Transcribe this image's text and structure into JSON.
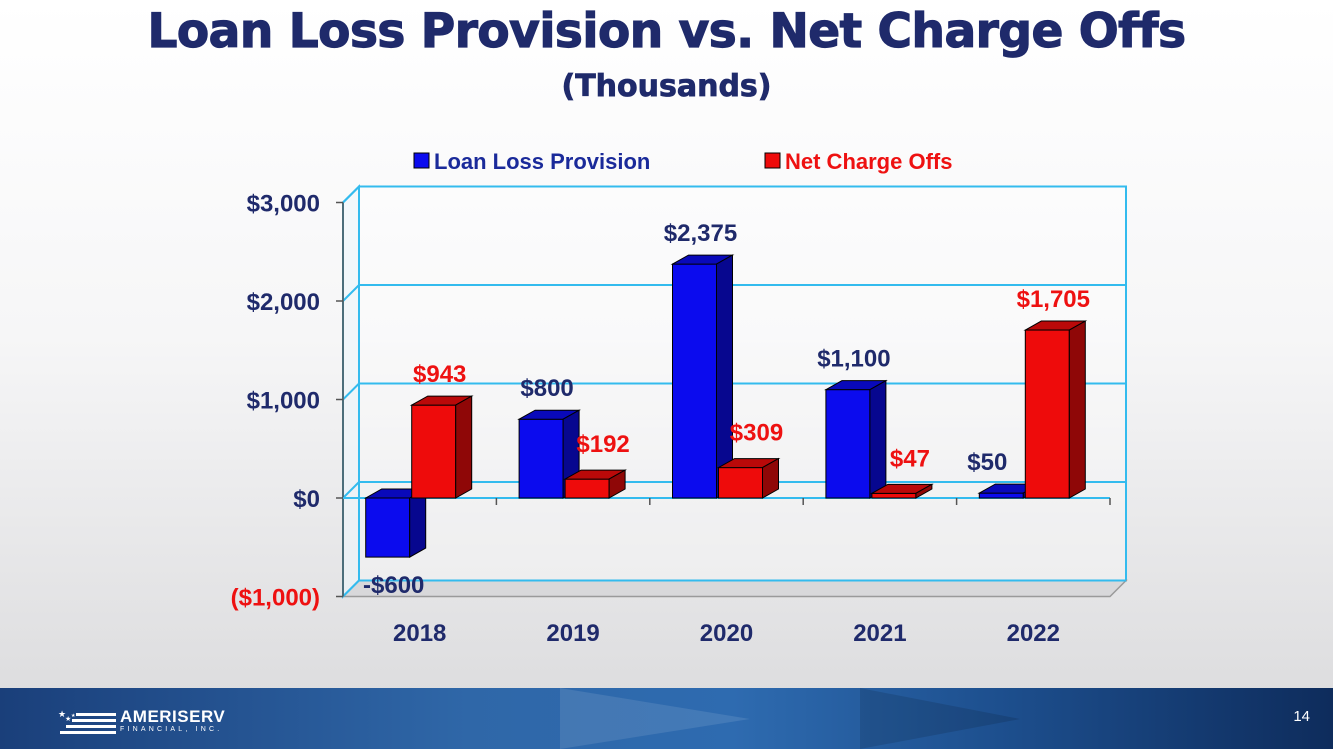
{
  "slide": {
    "title": "Loan Loss Provision vs. Net Charge Offs",
    "subtitle": "(Thousands)",
    "page_number": "14"
  },
  "logo": {
    "name": "AMERISERV",
    "tagline": "FINANCIAL, INC."
  },
  "colors": {
    "title": "#1f2a6b",
    "provision": "#0b0bee",
    "charge_offs": "#ee0b0b",
    "provision_label": "#1f2a6b",
    "charge_offs_label": "#ee1111",
    "gridline": "#33bbee",
    "axis_label": "#1f2a6b",
    "negative_tick": "#ee1111"
  },
  "chart_data": {
    "type": "bar",
    "title": "Loan Loss Provision vs. Net Charge Offs",
    "subtitle": "(Thousands)",
    "categories": [
      "2018",
      "2019",
      "2020",
      "2021",
      "2022"
    ],
    "series": [
      {
        "name": "Loan Loss Provision",
        "values": [
          -600,
          800,
          2375,
          1100,
          50
        ],
        "labels": [
          "-$600",
          "$800",
          "$2,375",
          "$1,100",
          "$50"
        ]
      },
      {
        "name": "Net Charge Offs",
        "values": [
          943,
          192,
          309,
          47,
          1705
        ],
        "labels": [
          "$943",
          "$192",
          "$309",
          "$47",
          "$1,705"
        ]
      }
    ],
    "ylim": [
      -1000,
      3000
    ],
    "yticks": [
      3000,
      2000,
      1000,
      0,
      -1000
    ],
    "ytick_labels": [
      "$3,000",
      "$2,000",
      "$1,000",
      "$0",
      "($1,000)"
    ],
    "xlabel": "",
    "ylabel": "",
    "grid": true,
    "legend_position": "top-center",
    "style": "3d-clustered-bar"
  }
}
